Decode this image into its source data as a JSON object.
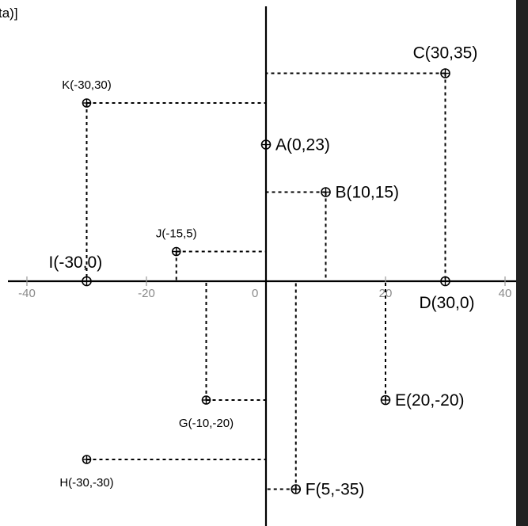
{
  "caption": "ta)]",
  "axes": {
    "origin_label": "0",
    "x_ticks": [
      {
        "value": -40,
        "label": "-40"
      },
      {
        "value": -20,
        "label": "-20"
      },
      {
        "value": 20,
        "label": "20"
      },
      {
        "value": 40,
        "label": "40"
      }
    ]
  },
  "points": [
    {
      "id": "A",
      "label": "A(0,23)",
      "x": 0,
      "y": 23,
      "size": "large",
      "anchor": "right",
      "guides": []
    },
    {
      "id": "B",
      "label": "B(10,15)",
      "x": 10,
      "y": 15,
      "size": "large",
      "anchor": "right",
      "guides": [
        "h",
        "v"
      ]
    },
    {
      "id": "C",
      "label": "C(30,35)",
      "x": 30,
      "y": 35,
      "size": "large",
      "anchor": "above",
      "guides": [
        "h",
        "v"
      ]
    },
    {
      "id": "D",
      "label": "D(30,0)",
      "x": 30,
      "y": 0,
      "size": "large",
      "anchor": "below",
      "guides": []
    },
    {
      "id": "E",
      "label": "E(20,-20)",
      "x": 20,
      "y": -20,
      "size": "large",
      "anchor": "right",
      "guides": [
        "v"
      ]
    },
    {
      "id": "F",
      "label": "F(5,-35)",
      "x": 5,
      "y": -35,
      "size": "large",
      "anchor": "right",
      "guides": [
        "h",
        "v"
      ]
    },
    {
      "id": "G",
      "label": "G(-10,-20)",
      "x": -10,
      "y": -20,
      "size": "small",
      "anchor": "below",
      "guides": [
        "h",
        "v"
      ]
    },
    {
      "id": "H",
      "label": "H(-30,-30)",
      "x": -30,
      "y": -30,
      "size": "small",
      "anchor": "below",
      "guides": [
        "h"
      ]
    },
    {
      "id": "I",
      "label": "I(-30,0)",
      "x": -30,
      "y": 0,
      "size": "large",
      "anchor": "above",
      "guides": []
    },
    {
      "id": "J",
      "label": "J(-15,5)",
      "x": -15,
      "y": 5,
      "size": "small",
      "anchor": "above",
      "guides": [
        "h",
        "v"
      ]
    },
    {
      "id": "K",
      "label": "K(-30,30)",
      "x": -30,
      "y": 30,
      "size": "small",
      "anchor": "above",
      "guides": [
        "h",
        "v"
      ]
    }
  ]
}
